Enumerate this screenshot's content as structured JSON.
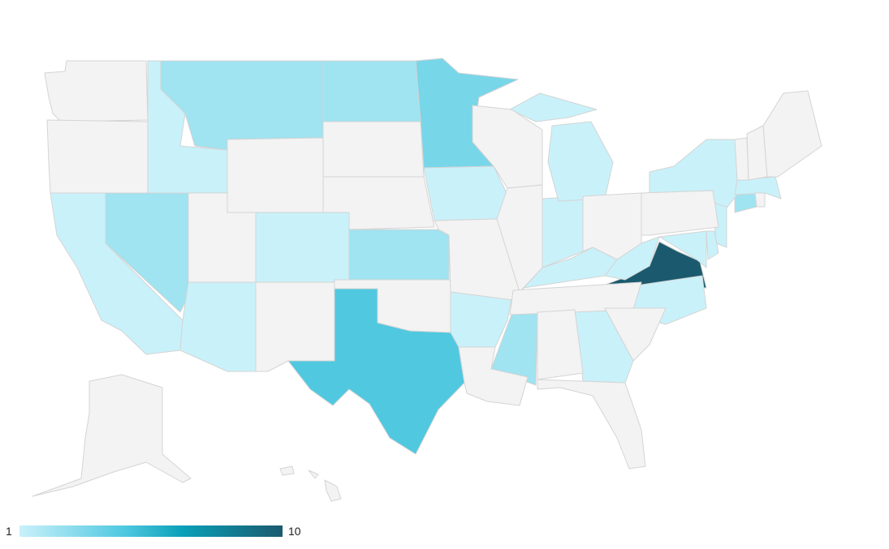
{
  "chart_data": {
    "type": "choropleth",
    "region": "US",
    "color_scale": {
      "min": 1,
      "max": 10,
      "min_label": "1",
      "max_label": "10",
      "min_color": "#c9f1fa",
      "max_color": "#1b5a6e",
      "no_data_color": "#f3f3f3"
    },
    "states": [
      {
        "code": "VA",
        "value": 10
      },
      {
        "code": "TX",
        "value": 4
      },
      {
        "code": "MN",
        "value": 3
      },
      {
        "code": "MT",
        "value": 2
      },
      {
        "code": "ND",
        "value": 2
      },
      {
        "code": "NV",
        "value": 2
      },
      {
        "code": "KS",
        "value": 2
      },
      {
        "code": "MS",
        "value": 2
      },
      {
        "code": "CT",
        "value": 2
      },
      {
        "code": "WA",
        "value": null
      },
      {
        "code": "OR",
        "value": null
      },
      {
        "code": "ID",
        "value": 1
      },
      {
        "code": "CA",
        "value": 1
      },
      {
        "code": "AZ",
        "value": 1
      },
      {
        "code": "CO",
        "value": 1
      },
      {
        "code": "IA",
        "value": 1
      },
      {
        "code": "AR",
        "value": 1
      },
      {
        "code": "IN",
        "value": 1
      },
      {
        "code": "MI",
        "value": 1
      },
      {
        "code": "KY",
        "value": 1
      },
      {
        "code": "WV",
        "value": 1
      },
      {
        "code": "NC",
        "value": 1
      },
      {
        "code": "GA",
        "value": 1
      },
      {
        "code": "NY",
        "value": 1
      },
      {
        "code": "NJ",
        "value": 1
      },
      {
        "code": "MD",
        "value": 1
      },
      {
        "code": "DE",
        "value": 1
      },
      {
        "code": "MA",
        "value": 1
      },
      {
        "code": "WY",
        "value": null
      },
      {
        "code": "UT",
        "value": null
      },
      {
        "code": "NM",
        "value": null
      },
      {
        "code": "SD",
        "value": null
      },
      {
        "code": "NE",
        "value": null
      },
      {
        "code": "OK",
        "value": null
      },
      {
        "code": "MO",
        "value": null
      },
      {
        "code": "WI",
        "value": null
      },
      {
        "code": "IL",
        "value": null
      },
      {
        "code": "TN",
        "value": null
      },
      {
        "code": "LA",
        "value": null
      },
      {
        "code": "AL",
        "value": null
      },
      {
        "code": "FL",
        "value": null
      },
      {
        "code": "SC",
        "value": null
      },
      {
        "code": "OH",
        "value": null
      },
      {
        "code": "PA",
        "value": null
      },
      {
        "code": "VT",
        "value": null
      },
      {
        "code": "NH",
        "value": null
      },
      {
        "code": "ME",
        "value": null
      },
      {
        "code": "RI",
        "value": null
      },
      {
        "code": "AK",
        "value": null
      },
      {
        "code": "HI",
        "value": null
      }
    ]
  },
  "legend": {
    "min_label": "1",
    "max_label": "10"
  }
}
